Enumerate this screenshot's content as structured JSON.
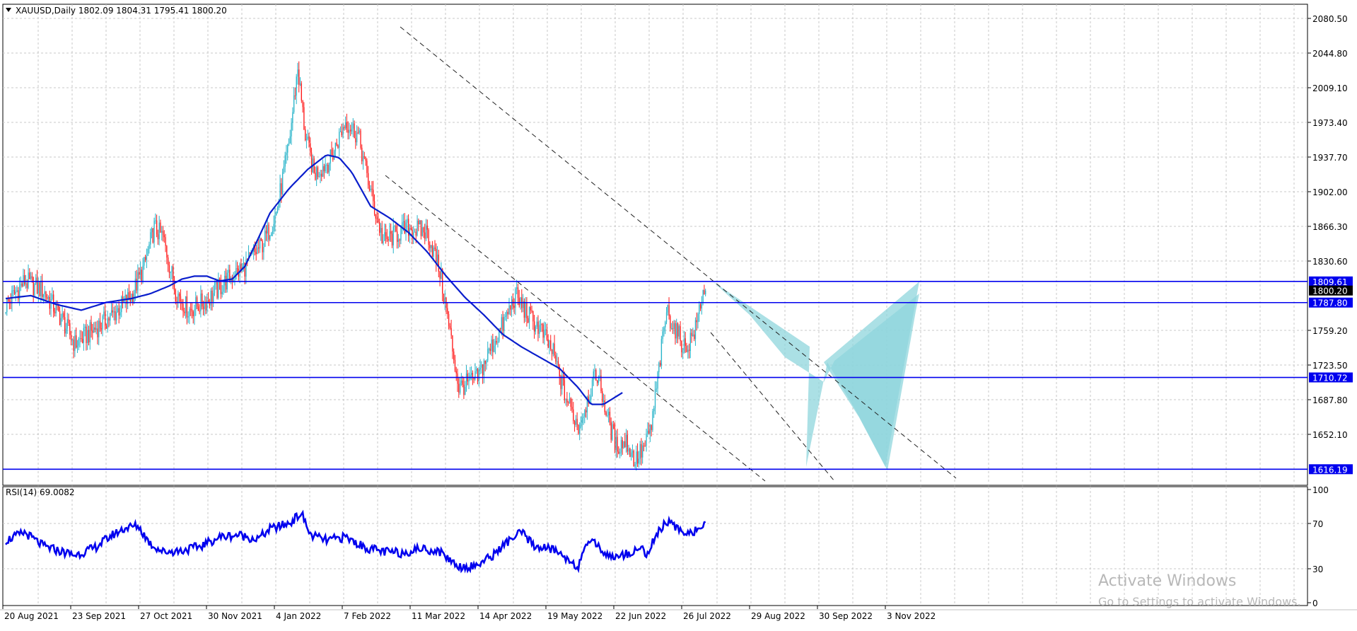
{
  "chart_data": {
    "type": "candlestick",
    "title": "XAUUSD,Daily",
    "ohlc_header": "1802.09 1804.31 1795.41 1800.20",
    "symbol": "XAUUSD",
    "timeframe": "Daily",
    "last_ohlc": {
      "open": 1802.09,
      "high": 1804.31,
      "low": 1795.41,
      "close": 1800.2
    },
    "grid": true,
    "colors": {
      "bull": "#26b3c9",
      "bear": "#ff1a1a",
      "ma": "#0a1ecc",
      "level": "#0000ee",
      "pattern": "#8fd6dc",
      "channel": "#222222",
      "rsi": "#0000ee"
    },
    "price_axis": {
      "ylim": [
        1616.19,
        2080.5
      ],
      "tick_labels": [
        "2080.50",
        "2044.80",
        "2009.10",
        "1973.40",
        "1937.70",
        "1902.00",
        "1866.30",
        "1830.60",
        "1759.20",
        "1723.50",
        "1687.80",
        "1652.10"
      ]
    },
    "x_axis": {
      "tick_labels": [
        "20 Aug 2021",
        "23 Sep 2021",
        "27 Oct 2021",
        "30 Nov 2021",
        "4 Jan 2022",
        "7 Feb 2022",
        "11 Mar 2022",
        "14 Apr 2022",
        "19 May 2022",
        "22 Jun 2022",
        "26 Jul 2022",
        "29 Aug 2022",
        "30 Sep 2022",
        "3 Nov 2022"
      ]
    },
    "levels": [
      {
        "value": 1809.61,
        "label": "1809.61"
      },
      {
        "value": 1787.8,
        "label": "1787.80"
      },
      {
        "value": 1710.72,
        "label": "1710.72"
      },
      {
        "value": 1616.19,
        "label": "1616.19"
      }
    ],
    "current_price": {
      "value": 1800.2,
      "label": "1800.20"
    },
    "moving_average_anchors": [
      [
        0,
        1792
      ],
      [
        20,
        1795
      ],
      [
        40,
        1786
      ],
      [
        60,
        1780
      ],
      [
        80,
        1788
      ],
      [
        100,
        1792
      ],
      [
        115,
        1797
      ],
      [
        130,
        1805
      ],
      [
        140,
        1812
      ],
      [
        150,
        1815
      ],
      [
        160,
        1815
      ],
      [
        170,
        1810
      ],
      [
        180,
        1812
      ],
      [
        190,
        1825
      ],
      [
        200,
        1852
      ],
      [
        210,
        1880
      ],
      [
        225,
        1905
      ],
      [
        240,
        1925
      ],
      [
        255,
        1940
      ],
      [
        265,
        1937
      ],
      [
        275,
        1922
      ],
      [
        290,
        1887
      ],
      [
        305,
        1875
      ],
      [
        320,
        1860
      ],
      [
        335,
        1840
      ],
      [
        350,
        1815
      ],
      [
        365,
        1793
      ],
      [
        380,
        1775
      ],
      [
        395,
        1755
      ],
      [
        410,
        1742
      ],
      [
        425,
        1731
      ],
      [
        440,
        1720
      ],
      [
        455,
        1700
      ],
      [
        465,
        1683
      ],
      [
        475,
        1683
      ],
      [
        490,
        1695
      ]
    ],
    "close_anchors": [
      [
        0,
        1785
      ],
      [
        15,
        1810
      ],
      [
        30,
        1800
      ],
      [
        45,
        1770
      ],
      [
        55,
        1745
      ],
      [
        70,
        1760
      ],
      [
        85,
        1775
      ],
      [
        100,
        1795
      ],
      [
        110,
        1825
      ],
      [
        118,
        1865
      ],
      [
        125,
        1855
      ],
      [
        135,
        1800
      ],
      [
        145,
        1780
      ],
      [
        160,
        1790
      ],
      [
        175,
        1810
      ],
      [
        190,
        1825
      ],
      [
        205,
        1850
      ],
      [
        215,
        1880
      ],
      [
        225,
        1950
      ],
      [
        232,
        2030
      ],
      [
        238,
        1960
      ],
      [
        245,
        1920
      ],
      [
        258,
        1935
      ],
      [
        270,
        1975
      ],
      [
        280,
        1960
      ],
      [
        292,
        1890
      ],
      [
        300,
        1850
      ],
      [
        310,
        1858
      ],
      [
        320,
        1865
      ],
      [
        335,
        1860
      ],
      [
        345,
        1820
      ],
      [
        360,
        1700
      ],
      [
        375,
        1710
      ],
      [
        385,
        1740
      ],
      [
        395,
        1765
      ],
      [
        405,
        1795
      ],
      [
        415,
        1775
      ],
      [
        425,
        1760
      ],
      [
        435,
        1735
      ],
      [
        445,
        1690
      ],
      [
        455,
        1660
      ],
      [
        465,
        1700
      ],
      [
        470,
        1715
      ],
      [
        478,
        1670
      ],
      [
        485,
        1640
      ],
      [
        493,
        1645
      ],
      [
        500,
        1625
      ],
      [
        508,
        1640
      ],
      [
        513,
        1660
      ],
      [
        520,
        1730
      ],
      [
        525,
        1780
      ],
      [
        532,
        1760
      ],
      [
        540,
        1740
      ],
      [
        548,
        1760
      ],
      [
        553,
        1795
      ],
      [
        556,
        1800
      ]
    ],
    "rsi": {
      "title": "RSI(14) 69.0082",
      "period": 14,
      "last_value": 69.0082,
      "ylim": [
        0,
        100
      ],
      "tick_labels": [
        "100",
        "70",
        "30",
        "0"
      ]
    },
    "rsi_anchors": [
      [
        0,
        55
      ],
      [
        15,
        62
      ],
      [
        30,
        50
      ],
      [
        45,
        45
      ],
      [
        55,
        42
      ],
      [
        70,
        48
      ],
      [
        85,
        60
      ],
      [
        95,
        66
      ],
      [
        105,
        68
      ],
      [
        115,
        52
      ],
      [
        125,
        45
      ],
      [
        140,
        46
      ],
      [
        155,
        50
      ],
      [
        170,
        58
      ],
      [
        185,
        60
      ],
      [
        200,
        56
      ],
      [
        210,
        65
      ],
      [
        225,
        70
      ],
      [
        235,
        79
      ],
      [
        242,
        60
      ],
      [
        255,
        55
      ],
      [
        270,
        58
      ],
      [
        285,
        49
      ],
      [
        300,
        45
      ],
      [
        315,
        44
      ],
      [
        330,
        48
      ],
      [
        345,
        45
      ],
      [
        360,
        32
      ],
      [
        372,
        32
      ],
      [
        385,
        40
      ],
      [
        400,
        55
      ],
      [
        410,
        62
      ],
      [
        420,
        50
      ],
      [
        435,
        47
      ],
      [
        445,
        40
      ],
      [
        455,
        32
      ],
      [
        465,
        58
      ],
      [
        475,
        44
      ],
      [
        485,
        40
      ],
      [
        495,
        44
      ],
      [
        505,
        48
      ],
      [
        510,
        43
      ],
      [
        517,
        60
      ],
      [
        525,
        72
      ],
      [
        535,
        64
      ],
      [
        545,
        62
      ],
      [
        556,
        69
      ]
    ]
  },
  "pattern_labels": {
    "label": ""
  },
  "watermark": {
    "line1": "Activate Windows",
    "line2": "Go to Settings to activate Windows."
  }
}
